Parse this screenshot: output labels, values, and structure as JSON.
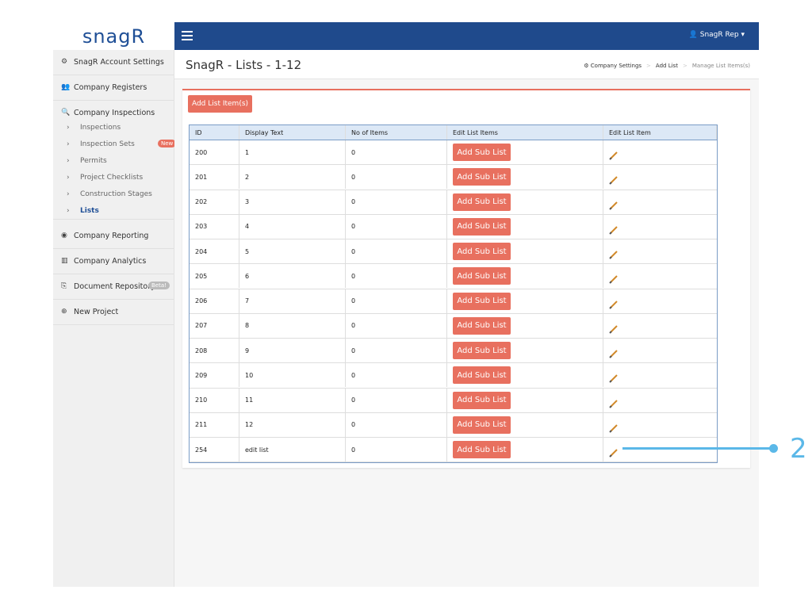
{
  "header": {
    "logo": "snagR",
    "user": "SnagR Rep"
  },
  "sidebar": {
    "items": [
      {
        "label": "SnagR Account Settings"
      },
      {
        "label": "Company Registers"
      },
      {
        "label": "Company Inspections",
        "children": [
          {
            "label": "Inspections"
          },
          {
            "label": "Inspection Sets",
            "badge": "New"
          },
          {
            "label": "Permits"
          },
          {
            "label": "Project Checklists"
          },
          {
            "label": "Construction Stages"
          },
          {
            "label": "Lists"
          }
        ]
      },
      {
        "label": "Company Reporting"
      },
      {
        "label": "Company Analytics"
      },
      {
        "label": "Document Repository",
        "badge": "Beta!"
      },
      {
        "label": "New Project"
      }
    ]
  },
  "page": {
    "title": "SnagR - Lists - 1-12",
    "breadcrumbs": [
      "Company Settings",
      "Add List",
      "Manage List Items(s)"
    ],
    "add_button": "Add List Item(s)"
  },
  "table": {
    "columns": [
      "ID",
      "Display Text",
      "No of Items",
      "Edit List Items",
      "Edit List Item"
    ],
    "row_button": "Add Sub List",
    "rows": [
      [
        "200",
        "1",
        "0"
      ],
      [
        "201",
        "2",
        "0"
      ],
      [
        "202",
        "3",
        "0"
      ],
      [
        "203",
        "4",
        "0"
      ],
      [
        "204",
        "5",
        "0"
      ],
      [
        "205",
        "6",
        "0"
      ],
      [
        "206",
        "7",
        "0"
      ],
      [
        "207",
        "8",
        "0"
      ],
      [
        "208",
        "9",
        "0"
      ],
      [
        "209",
        "10",
        "0"
      ],
      [
        "210",
        "11",
        "0"
      ],
      [
        "211",
        "12",
        "0"
      ],
      [
        "254",
        "edit list",
        "0"
      ]
    ]
  },
  "annotation": "2"
}
